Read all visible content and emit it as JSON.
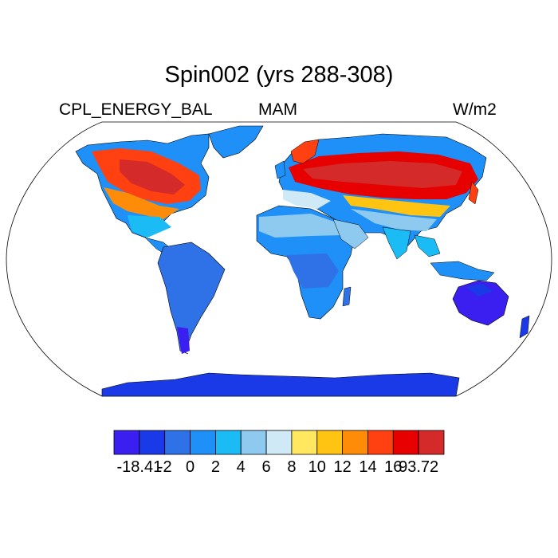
{
  "title": "Spin002 (yrs 288-308)",
  "variable": "CPL_ENERGY_BAL",
  "season": "MAM",
  "units": "W/m2",
  "colorbar": {
    "colors": [
      "#3a1ff0",
      "#1a3ae8",
      "#2f72e8",
      "#1e90f8",
      "#1bbcf6",
      "#8ecaf0",
      "#cfe9f7",
      "#ffe860",
      "#ffc312",
      "#ff8c08",
      "#ff4010",
      "#e60000",
      "#d42a2a"
    ],
    "labels": [
      "-18.41",
      "-2",
      "0",
      "2",
      "4",
      "6",
      "8",
      "10",
      "12",
      "14",
      "16",
      "93.72"
    ]
  },
  "legend": {
    "ocean": "#ffffff",
    "outline": "#000000"
  }
}
